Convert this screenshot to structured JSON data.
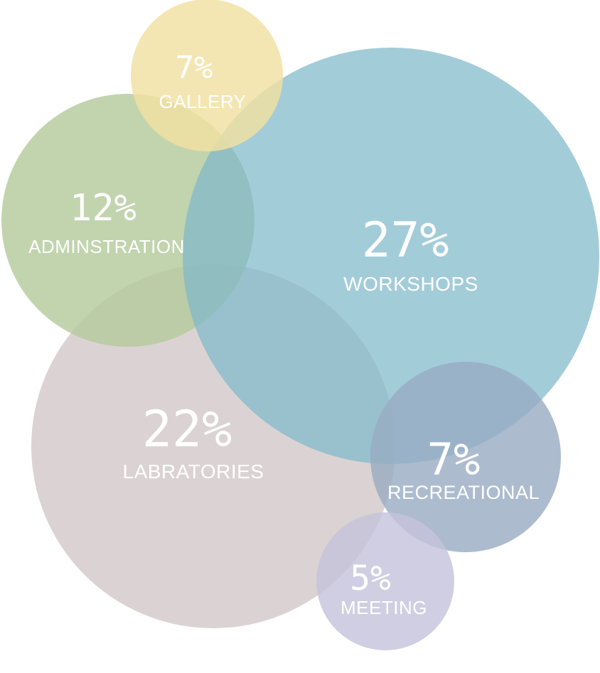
{
  "diagram": {
    "type": "bubble-overlap",
    "bubbles": [
      {
        "id": "labratories",
        "percent": "22%",
        "label": "LABRATORIES",
        "color": "#d8cfcf"
      },
      {
        "id": "adminstration",
        "percent": "12%",
        "label": "ADMINSTRATION",
        "color": "#b3ca9c"
      },
      {
        "id": "workshops",
        "percent": "27%",
        "label": "WORKSHOPS",
        "color": "#7fb8cb"
      },
      {
        "id": "gallery",
        "percent": "7%",
        "label": "GALLERY",
        "color": "#f2e0a1"
      },
      {
        "id": "recreational",
        "percent": "7%",
        "label": "RECREATIONAL",
        "color": "#97abc2"
      },
      {
        "id": "meeting",
        "percent": "5%",
        "label": "MEETING",
        "color": "#c6c3dc"
      }
    ]
  }
}
